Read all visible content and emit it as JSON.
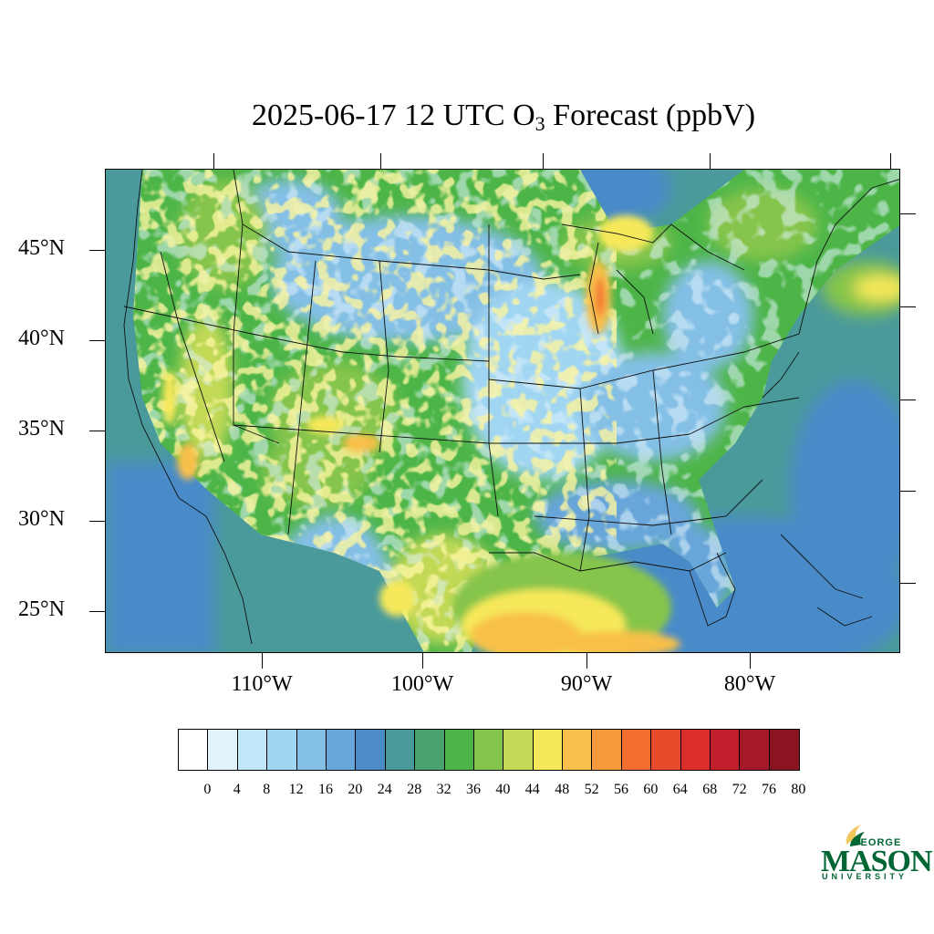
{
  "title": {
    "prefix": "2025-06-17 12 UTC O",
    "subscript": "3",
    "suffix": " Forecast (ppbV)"
  },
  "map": {
    "lat_labels": [
      "45°N",
      "40°N",
      "35°N",
      "30°N",
      "25°N"
    ],
    "lon_labels": [
      "110°W",
      "100°W",
      "90°W",
      "80°W"
    ],
    "field": "ozone concentration forecast over contiguous United States"
  },
  "colorbar": {
    "labels": [
      "0",
      "4",
      "8",
      "12",
      "16",
      "20",
      "24",
      "28",
      "32",
      "36",
      "40",
      "44",
      "48",
      "52",
      "56",
      "60",
      "64",
      "68",
      "72",
      "76",
      "80"
    ],
    "colors": [
      "#ffffff",
      "#e0f3fb",
      "#c0e6f7",
      "#a1d6f2",
      "#84bfe6",
      "#67a6da",
      "#4a8bc8",
      "#4a9a9b",
      "#48a36f",
      "#4db548",
      "#86c54b",
      "#c2d957",
      "#f6e85a",
      "#f8c04a",
      "#f69a3e",
      "#f36f31",
      "#e84b2c",
      "#dc2e2b",
      "#c01f2b",
      "#a4182a",
      "#8a1420"
    ]
  },
  "logo": {
    "line1": "GEORGE",
    "line2": "MASON",
    "line3": "UNIVERSITY",
    "color": "#006633",
    "accent": "#f2c75c"
  }
}
